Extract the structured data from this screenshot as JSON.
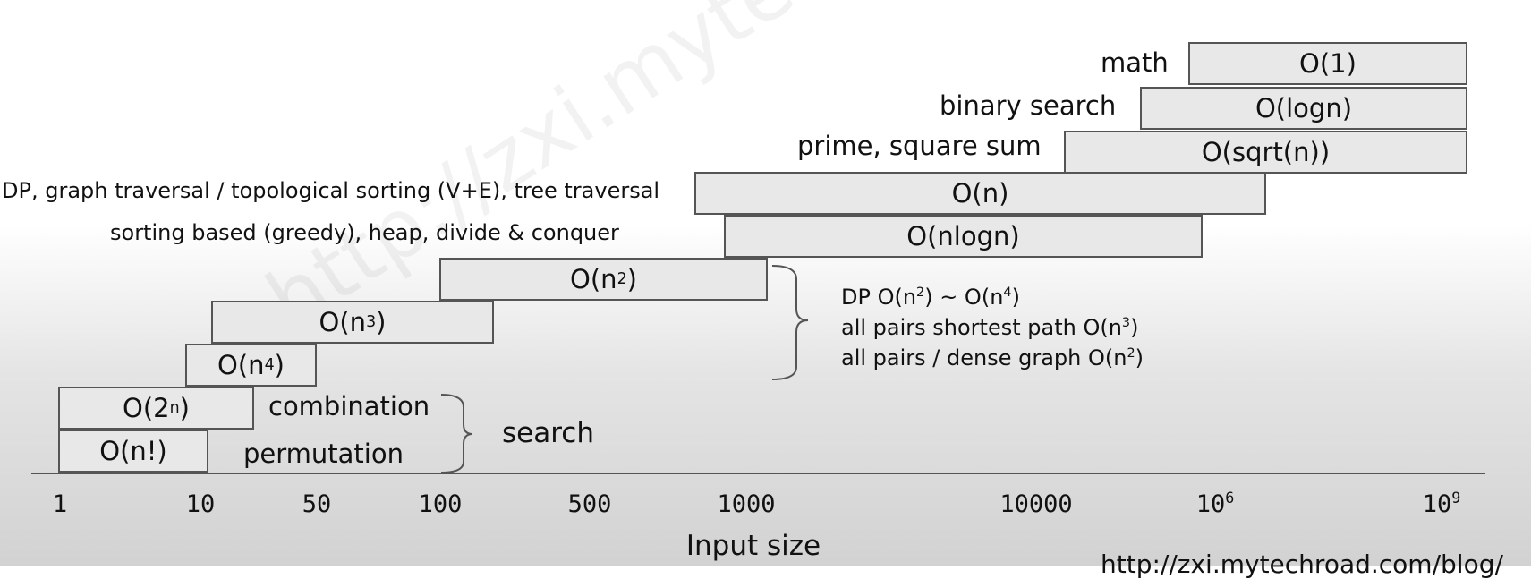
{
  "watermark": "http://zxi.mytechroad.com/blog",
  "boxes": {
    "o1": "O(1)",
    "ologn": "O(logn)",
    "osqrtn": "O(sqrt(n))",
    "on": "O(n)",
    "onlogn": "O(nlogn)",
    "on2": {
      "base": "O(n",
      "exp": "2",
      "close": ")"
    },
    "on3": {
      "base": "O(n",
      "exp": "3",
      "close": ")"
    },
    "on4": {
      "base": "O(n",
      "exp": "4",
      "close": ")"
    },
    "o2n": {
      "base": "O(2",
      "exp": "n",
      "close": ")"
    },
    "onfact": "O(n!)"
  },
  "labels": {
    "math": "math",
    "binary_search": "binary search",
    "prime": "prime, square sum",
    "dp_graph": "DP, graph traversal / topological sorting (V+E), tree traversal",
    "sorting": "sorting based (greedy), heap, divide & conquer",
    "combination": "combination",
    "permutation": "permutation",
    "search": "search"
  },
  "notes": {
    "dp": {
      "a": "DP O(n",
      "e1": "2",
      "b": ") ~ O(n",
      "e2": "4",
      "c": ")"
    },
    "apsp": {
      "a": "all pairs shortest path O(n",
      "e1": "3",
      "c": ")"
    },
    "dense": {
      "a": "all pairs / dense graph O(n",
      "e1": "2",
      "c": ")"
    }
  },
  "axis": {
    "title": "Input size",
    "ticks": [
      "1",
      "10",
      "50",
      "100",
      "500",
      "1000",
      "10000"
    ],
    "tick_pow6": {
      "base": "10",
      "exp": "6"
    },
    "tick_pow9": {
      "base": "10",
      "exp": "9"
    }
  },
  "footer_url": "http://zxi.mytechroad.com/blog/"
}
